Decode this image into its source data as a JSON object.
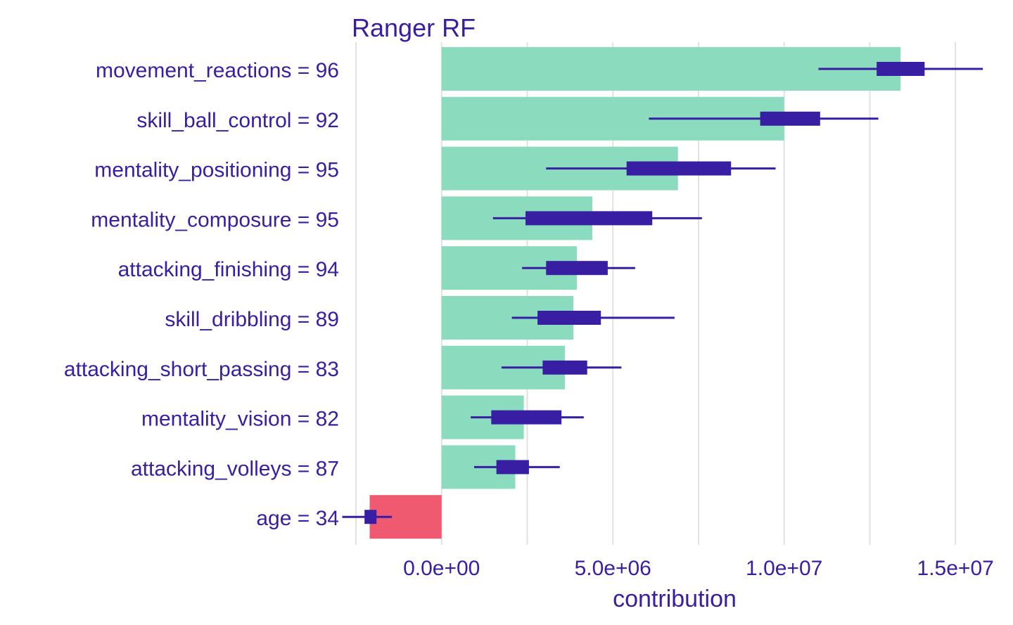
{
  "chart_data": {
    "type": "bar",
    "title": "Ranger RF",
    "xlabel": "contribution",
    "ylabel": "",
    "xlim": [
      -2500000,
      15900000
    ],
    "x_ticks": [
      0,
      5000000,
      10000000,
      15000000
    ],
    "x_tick_labels": [
      "0.0e+00",
      "5.0e+06",
      "1.0e+07",
      "1.5e+07"
    ],
    "grid": "vertical",
    "legend": "none",
    "colors": {
      "positive": "#8bdcbe",
      "negative": "#f05a71",
      "interval": "#371ea3",
      "text": "#371ea3",
      "grid": "#e1e1e1"
    },
    "categories": [
      "movement_reactions = 96",
      "skill_ball_control = 92",
      "mentality_positioning = 95",
      "mentality_composure = 95",
      "attacking_finishing = 94",
      "skill_dribbling = 89",
      "attacking_short_passing = 83",
      "mentality_vision = 82",
      "attacking_volleys = 87",
      "age = 34"
    ],
    "values": [
      13400000,
      10000000,
      6900000,
      4400000,
      3950000,
      3850000,
      3600000,
      2400000,
      2150000,
      -2100000
    ],
    "intervals": [
      {
        "min": 11000000,
        "q1": 12700000,
        "q3": 14100000,
        "max": 15800000
      },
      {
        "min": 6050000,
        "q1": 9300000,
        "q3": 11050000,
        "max": 12750000
      },
      {
        "min": 3050000,
        "q1": 5400000,
        "q3": 8450000,
        "max": 9750000
      },
      {
        "min": 1500000,
        "q1": 2450000,
        "q3": 6150000,
        "max": 7600000
      },
      {
        "min": 2350000,
        "q1": 3050000,
        "q3": 4850000,
        "max": 5650000
      },
      {
        "min": 2050000,
        "q1": 2800000,
        "q3": 4650000,
        "max": 6800000
      },
      {
        "min": 1750000,
        "q1": 2950000,
        "q3": 4250000,
        "max": 5250000
      },
      {
        "min": 850000,
        "q1": 1450000,
        "q3": 3500000,
        "max": 4150000
      },
      {
        "min": 950000,
        "q1": 1600000,
        "q3": 2550000,
        "max": 3450000
      },
      {
        "min": -2900000,
        "q1": -2250000,
        "q3": -1900000,
        "max": -1450000
      }
    ]
  }
}
